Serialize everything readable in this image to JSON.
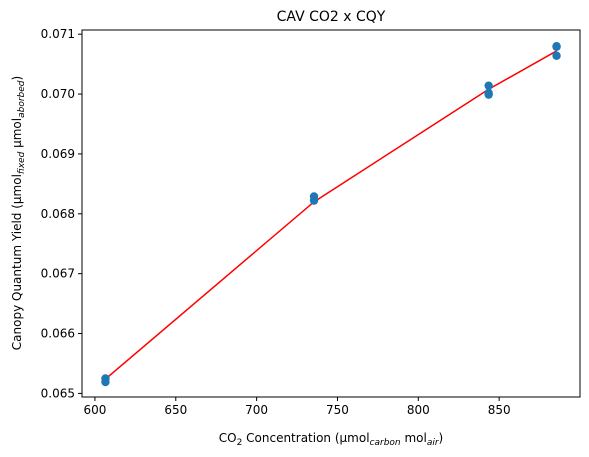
{
  "chart_data": {
    "type": "scatter",
    "title": "CAV CO2 x CQY",
    "xlabel": {
      "pre": "CO",
      "sub1": "2",
      "mid": " Concentration (µmol",
      "sub2": "carbon",
      "mid2": " mol",
      "sub3": "air",
      "post": ")"
    },
    "ylabel": {
      "pre": "Canopy Quantum Yield (µmol",
      "sub1": "fixed",
      "mid": " µmol",
      "sub2": "aborbed",
      "post": ")"
    },
    "xlim": [
      592,
      900
    ],
    "ylim": [
      0.06494,
      0.07107
    ],
    "xticks": [
      600,
      650,
      700,
      750,
      800,
      850
    ],
    "xtick_labels": [
      "600",
      "650",
      "700",
      "750",
      "800",
      "850"
    ],
    "yticks": [
      0.065,
      0.066,
      0.067,
      0.068,
      0.069,
      0.07,
      0.071
    ],
    "ytick_labels": [
      "0.065",
      "0.066",
      "0.067",
      "0.068",
      "0.069",
      "0.070",
      "0.071"
    ],
    "grid": false,
    "series": [
      {
        "kind": "scatter",
        "color": "#1f77b4",
        "points": [
          [
            606.5,
            0.06525
          ],
          [
            606.5,
            0.06519
          ],
          [
            735.5,
            0.06829
          ],
          [
            735.5,
            0.06822
          ],
          [
            843.5,
            0.07014
          ],
          [
            843.5,
            0.07002
          ],
          [
            843.5,
            0.06999
          ],
          [
            885.5,
            0.0708
          ],
          [
            885.5,
            0.07079
          ],
          [
            885.5,
            0.07064
          ]
        ]
      },
      {
        "kind": "line",
        "color": "#ff0000",
        "points": [
          [
            606.5,
            0.06524
          ],
          [
            735.5,
            0.0682
          ],
          [
            843.5,
            0.07008
          ],
          [
            885.5,
            0.07072
          ]
        ]
      }
    ]
  }
}
